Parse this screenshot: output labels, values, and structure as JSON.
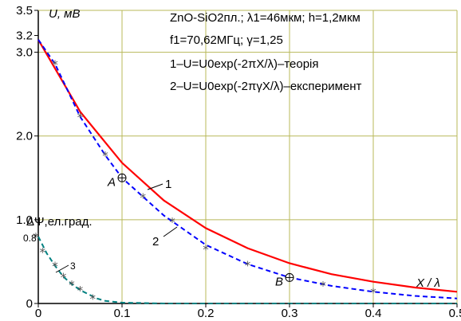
{
  "chart_data": {
    "type": "line",
    "xlabel": "X / λ",
    "ylabel": "U, мВ",
    "xlim": [
      0,
      0.5
    ],
    "ylim": [
      0,
      3.5
    ],
    "x_ticks": [
      0,
      0.1,
      0.2,
      0.3,
      0.4,
      0.5
    ],
    "x_tick_labels": [
      "0",
      "0.1",
      "0.2",
      "0.3",
      "0.4",
      "0.5"
    ],
    "y_ticks": [
      0,
      1.0,
      2.0,
      3.0,
      3.2,
      3.5
    ],
    "y_tick_labels": [
      "0",
      "1.0",
      "2.0",
      "3.0",
      "3.2",
      "3.5"
    ],
    "grid": true,
    "grid_color": "#b8b85a",
    "annotation_lines": [
      "ZnO-SiO2пл.; λ1=46мкм; h=1,2мкм",
      "f1=70,62МГц; γ=1,25",
      "1–U=U0exp(-2πX/λ)–теорія",
      "2–U=U0exp(-2πγX/λ)–експеримент"
    ],
    "series": [
      {
        "label": "1",
        "color": "#ff0000",
        "style": "solid",
        "x": [
          0,
          0.05,
          0.1,
          0.15,
          0.2,
          0.25,
          0.3,
          0.35,
          0.4,
          0.45,
          0.5
        ],
        "y": [
          3.15,
          2.29,
          1.68,
          1.23,
          0.9,
          0.66,
          0.48,
          0.35,
          0.26,
          0.19,
          0.14
        ]
      },
      {
        "label": "2",
        "color": "#0000ff",
        "style": "dashed",
        "x": [
          0,
          0.02,
          0.05,
          0.08,
          0.1,
          0.15,
          0.2,
          0.25,
          0.3,
          0.35,
          0.4,
          0.45,
          0.5
        ],
        "y": [
          3.15,
          2.86,
          2.23,
          1.77,
          1.5,
          1.05,
          0.7,
          0.47,
          0.31,
          0.21,
          0.14,
          0.09,
          0.06
        ],
        "marker_x": [
          0.02,
          0.05,
          0.08,
          0.125,
          0.16,
          0.2,
          0.25,
          0.34,
          0.4
        ],
        "marker_y": [
          2.86,
          2.23,
          1.77,
          1.27,
          0.98,
          0.65,
          0.46,
          0.22,
          0.14
        ]
      },
      {
        "label": "3",
        "color": "#008080",
        "style": "dashed",
        "x": [
          0,
          0.01,
          0.02,
          0.03,
          0.04,
          0.05,
          0.06,
          0.07,
          0.08,
          0.1,
          0.15,
          0.2,
          0.3,
          0.4,
          0.5
        ],
        "y": [
          0.8,
          0.6,
          0.45,
          0.32,
          0.23,
          0.16,
          0.11,
          0.06,
          0.03,
          0.01,
          0.0,
          0.0,
          0.0,
          0.0,
          0.0
        ],
        "marker_x": [
          0.005,
          0.02,
          0.03,
          0.04,
          0.05,
          0.065
        ],
        "marker_y": [
          0.62,
          0.45,
          0.32,
          0.23,
          0.16,
          0.06
        ]
      }
    ],
    "points": [
      {
        "label": "A",
        "x": 0.1,
        "y": 1.5
      },
      {
        "label": "B",
        "x": 0.3,
        "y": 0.31
      }
    ],
    "secondary_label": "ΔΨ,ел.град.",
    "secondary_value_label": "0.8",
    "series_labels": [
      "1",
      "2",
      "3"
    ]
  }
}
